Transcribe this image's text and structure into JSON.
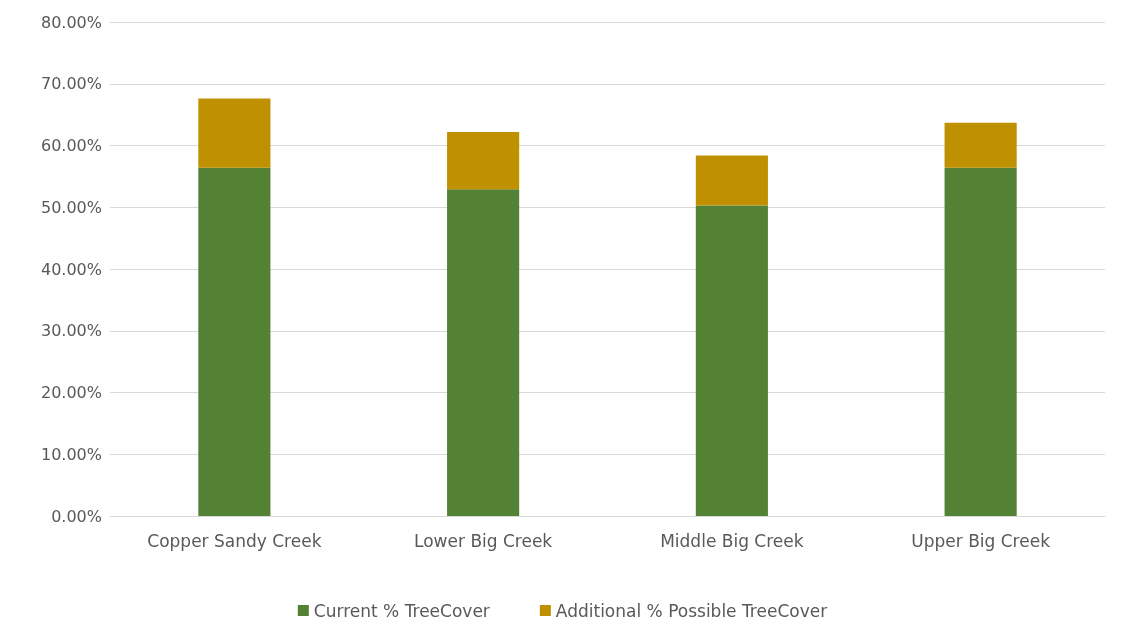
{
  "chart_data": {
    "type": "bar",
    "stacked": true,
    "categories": [
      "Copper Sandy Creek",
      "Lower Big Creek",
      "Middle Big Creek",
      "Upper Big Creek"
    ],
    "series": [
      {
        "name": "Current % TreeCover",
        "color": "#548235",
        "values": [
          56.4,
          52.9,
          50.3,
          56.4
        ]
      },
      {
        "name": "Additional % Possible TreeCover",
        "color": "#bf9000",
        "values": [
          11.2,
          9.3,
          8.1,
          7.3
        ]
      }
    ],
    "ylim": [
      0,
      80
    ],
    "yticks": [
      {
        "value": 0,
        "label": "0.00%"
      },
      {
        "value": 10,
        "label": "10.00%"
      },
      {
        "value": 20,
        "label": "20.00%"
      },
      {
        "value": 30,
        "label": "30.00%"
      },
      {
        "value": 40,
        "label": "40.00%"
      },
      {
        "value": 50,
        "label": "50.00%"
      },
      {
        "value": 60,
        "label": "60.00%"
      },
      {
        "value": 70,
        "label": "70.00%"
      },
      {
        "value": 80,
        "label": "80.00%"
      }
    ],
    "grid": "y",
    "legend": "bottom"
  }
}
